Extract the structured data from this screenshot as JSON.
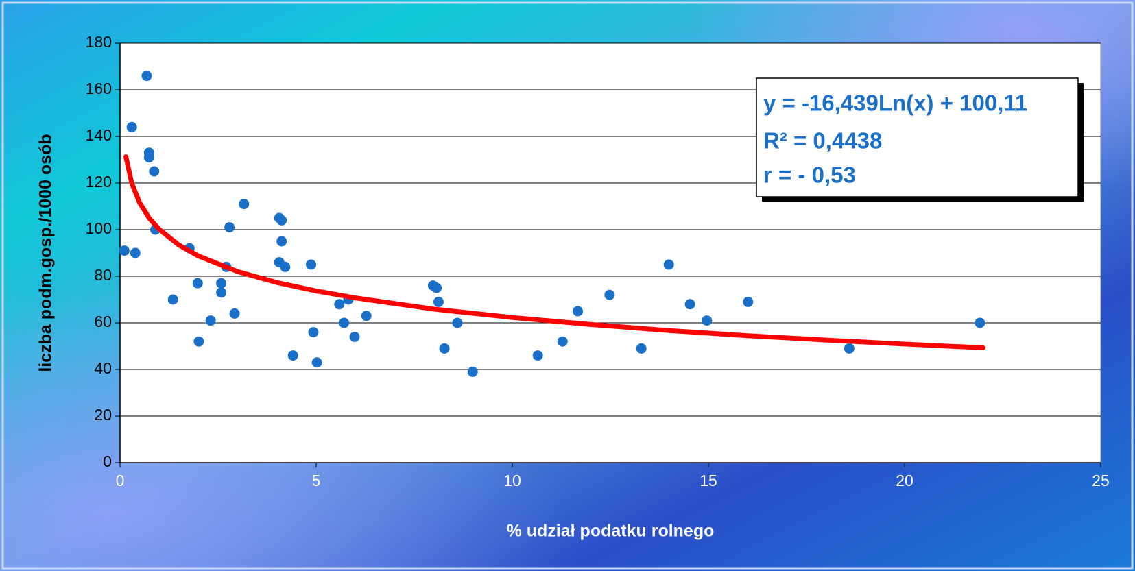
{
  "chart_data": {
    "type": "scatter",
    "xlabel": "% udział podatku rolnego",
    "ylabel": "liczba podm.gosp./1000 osób",
    "xlim": [
      0,
      25
    ],
    "xticks": [
      0,
      5,
      10,
      15,
      20,
      25
    ],
    "ylim": [
      0,
      180
    ],
    "yticks": [
      0,
      20,
      40,
      60,
      80,
      100,
      120,
      140,
      160,
      180
    ],
    "grid": true,
    "color": "#1a6fc9",
    "x": [
      0.11,
      0.3,
      0.39,
      0.68,
      0.74,
      0.74,
      0.87,
      0.9,
      1.35,
      1.77,
      1.98,
      2.01,
      2.31,
      2.58,
      2.58,
      2.71,
      2.79,
      2.92,
      3.16,
      4.06,
      4.12,
      4.12,
      4.06,
      4.21,
      4.41,
      4.87,
      4.93,
      5.02,
      5.59,
      5.71,
      5.82,
      5.98,
      6.28,
      7.98,
      8.07,
      8.12,
      8.27,
      8.6,
      8.99,
      10.65,
      11.28,
      11.67,
      12.48,
      13.29,
      13.99,
      14.53,
      14.96,
      16.01,
      18.59,
      21.92
    ],
    "values": [
      91,
      144,
      90,
      166,
      133,
      131,
      125,
      100,
      70,
      92,
      77,
      52,
      61,
      77,
      73,
      84,
      101,
      64,
      111,
      105,
      104,
      95,
      86,
      84,
      46,
      85,
      56,
      43,
      68,
      60,
      70,
      54,
      63,
      76,
      75,
      69,
      49,
      60,
      39,
      46,
      52,
      65,
      72,
      49,
      85,
      68,
      61,
      69,
      49,
      60
    ],
    "trendline": {
      "color": "#ff0000",
      "x": [
        0.15,
        0.3,
        0.5,
        0.75,
        1,
        1.5,
        2,
        3,
        4,
        5,
        6,
        8,
        10,
        12,
        14,
        16,
        18,
        20,
        22
      ],
      "values": [
        131.3,
        119.9,
        111.5,
        104.8,
        100.1,
        93.4,
        88.7,
        82.0,
        77.3,
        73.7,
        70.7,
        65.9,
        62.3,
        59.3,
        56.7,
        54.5,
        52.6,
        50.9,
        49.3
      ]
    },
    "annotations": [
      "y = -16,439Ln(x) + 100,11",
      "R² = 0,4438",
      "r = - 0,53"
    ]
  }
}
